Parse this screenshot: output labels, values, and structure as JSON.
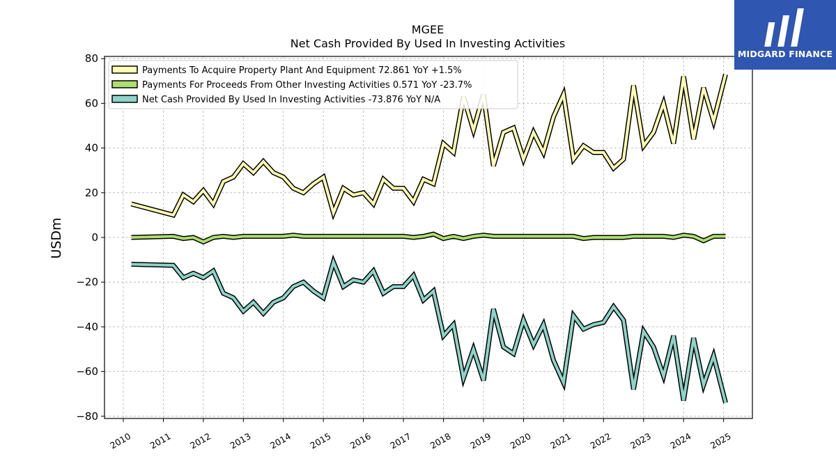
{
  "logo": {
    "text": "MIDGARD FINANCE",
    "bg_color": "#2f56b0"
  },
  "chart_data": {
    "type": "line",
    "title": "MGEE",
    "subtitle": "Net Cash Provided By Used In Investing Activities",
    "ylabel": "USDm",
    "xlabel": "",
    "ylim": [
      -81,
      81
    ],
    "xlim": [
      2009.53,
      2025.72
    ],
    "yticks": [
      80,
      60,
      40,
      20,
      0,
      -20,
      -40,
      -60,
      -80
    ],
    "ytick_labels": [
      "80",
      "60",
      "40",
      "20",
      "0",
      "−20",
      "−40",
      "−60",
      "−80"
    ],
    "xticks": [
      2010,
      2011,
      2012,
      2013,
      2014,
      2015,
      2016,
      2017,
      2018,
      2019,
      2020,
      2021,
      2022,
      2023,
      2024,
      2025
    ],
    "xtick_labels": [
      "2010",
      "2011",
      "2012",
      "2013",
      "2014",
      "2015",
      "2016",
      "2017",
      "2018",
      "2019",
      "2020",
      "2021",
      "2022",
      "2023",
      "2024",
      "2025"
    ],
    "grid": true,
    "legend_position": "top-left",
    "series": [
      {
        "name": "Payments To Acquire Property Plant And Equipment  72.861 YoY +1.5%",
        "color": "#ffffb3",
        "x": [
          2010.2,
          2011.25,
          2011.5,
          2011.75,
          2012.0,
          2012.25,
          2012.5,
          2012.75,
          2013.0,
          2013.25,
          2013.5,
          2013.75,
          2014.0,
          2014.25,
          2014.5,
          2014.75,
          2015.0,
          2015.25,
          2015.5,
          2015.75,
          2016.0,
          2016.25,
          2016.5,
          2016.75,
          2017.0,
          2017.25,
          2017.5,
          2017.75,
          2018.0,
          2018.25,
          2018.5,
          2018.75,
          2019.0,
          2019.25,
          2019.5,
          2019.75,
          2020.0,
          2020.25,
          2020.5,
          2020.75,
          2021.0,
          2021.25,
          2021.5,
          2021.75,
          2022.0,
          2022.25,
          2022.5,
          2022.75,
          2023.0,
          2023.25,
          2023.5,
          2023.75,
          2024.0,
          2024.25,
          2024.5,
          2024.75,
          2025.05
        ],
        "values": [
          15,
          10,
          19,
          16,
          21,
          15,
          25,
          27,
          33,
          29,
          34,
          29,
          27,
          22,
          20,
          24,
          27,
          11,
          22,
          19,
          20,
          15,
          26,
          22,
          22,
          16,
          26,
          24,
          42,
          38,
          63,
          48,
          64,
          32,
          47,
          49,
          35,
          47,
          38,
          54,
          64,
          35,
          41,
          38,
          38,
          31,
          35,
          68,
          41,
          47,
          60,
          42,
          72,
          44,
          67,
          52,
          73
        ]
      },
      {
        "name": "Payments For Proceeds From Other Investing Activities  0.571 YoY -23.7%",
        "color": "#addf6f",
        "x": [
          2010.2,
          2011.25,
          2011.5,
          2011.75,
          2012.0,
          2012.25,
          2012.5,
          2012.75,
          2013.0,
          2013.25,
          2013.5,
          2013.75,
          2014.0,
          2014.25,
          2014.5,
          2014.75,
          2015.0,
          2015.25,
          2015.5,
          2015.75,
          2016.0,
          2016.25,
          2016.5,
          2016.75,
          2017.0,
          2017.25,
          2017.5,
          2017.75,
          2018.0,
          2018.25,
          2018.5,
          2018.75,
          2019.0,
          2019.25,
          2019.5,
          2019.75,
          2020.0,
          2020.25,
          2020.5,
          2020.75,
          2021.0,
          2021.25,
          2021.5,
          2021.75,
          2022.0,
          2022.25,
          2022.5,
          2022.75,
          2023.0,
          2023.25,
          2023.5,
          2023.75,
          2024.0,
          2024.25,
          2024.5,
          2024.75,
          2025.05
        ],
        "values": [
          0,
          0.5,
          -0.5,
          0,
          -2,
          0,
          0.5,
          0,
          0.5,
          0.5,
          0.5,
          0.5,
          0.5,
          1,
          0.5,
          0.5,
          0.5,
          0.5,
          0.5,
          0.5,
          0.5,
          0.5,
          0.5,
          0.5,
          0.5,
          0,
          0.5,
          1.5,
          -0.5,
          0.5,
          -0.5,
          0.5,
          1,
          0.5,
          0.5,
          0.5,
          0.5,
          0.5,
          0.5,
          0.5,
          0.5,
          0.5,
          -0.5,
          0,
          0,
          0,
          0,
          0.5,
          0.5,
          0.5,
          0.5,
          0,
          1,
          0.5,
          -1.5,
          0.5,
          0.5
        ]
      },
      {
        "name": "Net Cash Provided By Used In Investing Activities  -73.876 YoY N/A",
        "color": "#8dd3c7",
        "x": [
          2010.2,
          2011.25,
          2011.5,
          2011.75,
          2012.0,
          2012.25,
          2012.5,
          2012.75,
          2013.0,
          2013.25,
          2013.5,
          2013.75,
          2014.0,
          2014.25,
          2014.5,
          2014.75,
          2015.0,
          2015.25,
          2015.5,
          2015.75,
          2016.0,
          2016.25,
          2016.5,
          2016.75,
          2017.0,
          2017.25,
          2017.5,
          2017.75,
          2018.0,
          2018.25,
          2018.5,
          2018.75,
          2019.0,
          2019.25,
          2019.5,
          2019.75,
          2020.0,
          2020.25,
          2020.5,
          2020.75,
          2021.0,
          2021.25,
          2021.5,
          2021.75,
          2022.0,
          2022.25,
          2022.5,
          2022.75,
          2023.0,
          2023.25,
          2023.5,
          2023.75,
          2024.0,
          2024.25,
          2024.5,
          2024.75,
          2025.05
        ],
        "values": [
          -12,
          -12.5,
          -18,
          -16,
          -18,
          -15,
          -25,
          -27,
          -33,
          -29,
          -34,
          -29,
          -27,
          -22,
          -20,
          -24,
          -27,
          -11,
          -22,
          -19,
          -20,
          -15,
          -25,
          -22,
          -22,
          -17,
          -28,
          -24,
          -44,
          -39,
          -63,
          -50,
          -64,
          -32,
          -49,
          -52,
          -37,
          -48,
          -39,
          -55,
          -65,
          -35,
          -41,
          -39,
          -38,
          -31,
          -37,
          -68,
          -42,
          -49,
          -62,
          -44,
          -73,
          -45,
          -66,
          -53,
          -74
        ]
      }
    ]
  }
}
